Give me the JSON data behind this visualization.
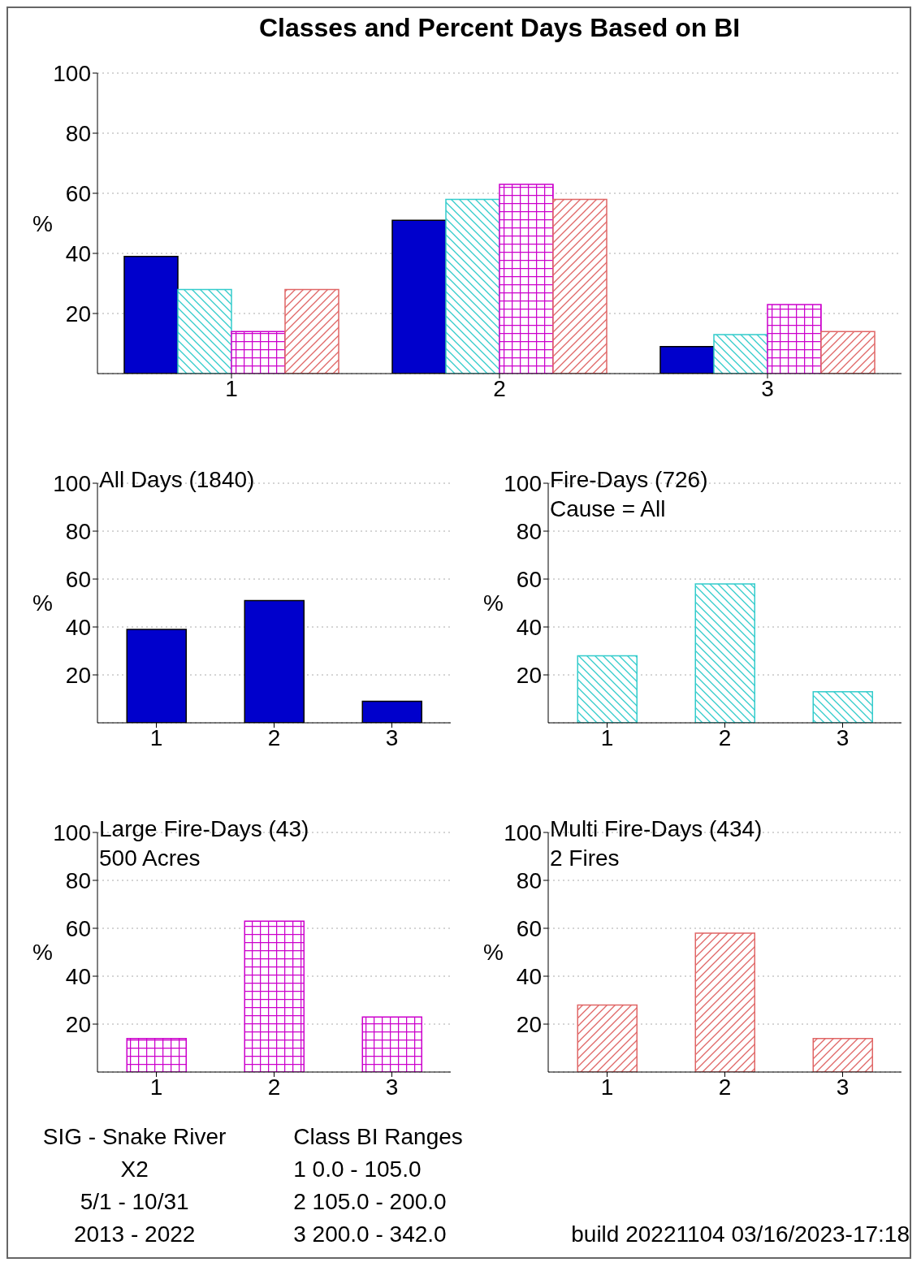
{
  "chart_data": [
    {
      "type": "bar",
      "title": "Classes and Percent Days Based on BI",
      "ylabel": "%",
      "categories": [
        "1",
        "2",
        "3"
      ],
      "series": [
        {
          "color": "#0000cc",
          "values": [
            39,
            51,
            9
          ]
        },
        {
          "color": "#33cccc",
          "values": [
            28,
            58,
            13
          ]
        },
        {
          "color": "#cc00cc",
          "values": [
            14,
            63,
            23
          ]
        },
        {
          "color": "#e06666",
          "values": [
            28,
            58,
            14
          ]
        }
      ],
      "ylim": [
        0,
        100
      ],
      "yticks": [
        20,
        40,
        60,
        80,
        100
      ],
      "grid": "y",
      "annotations": [
        "SIG - Snake River\nX2\n5/1 - 10/31\n2013 - 2022",
        "Class BI Ranges\n1   0.0 - 105.0\n2 105.0 - 200.0\n3 200.0 - 342.0",
        "build 20221104 03/16/2023-17:18"
      ]
    },
    {
      "type": "bar",
      "title": "All Days (1840)",
      "ylabel": "%",
      "categories": [
        "1",
        "2",
        "3"
      ],
      "series": [
        {
          "color": "#0000cc",
          "values": [
            39,
            51,
            9
          ]
        }
      ],
      "ylim": [
        0,
        100
      ],
      "yticks": [
        20,
        40,
        60,
        80,
        100
      ],
      "grid": "y"
    },
    {
      "type": "bar",
      "title": "Fire-Days (726)",
      "subtitle": "Cause = All",
      "ylabel": "%",
      "categories": [
        "1",
        "2",
        "3"
      ],
      "series": [
        {
          "color": "#33cccc",
          "values": [
            28,
            58,
            13
          ]
        }
      ],
      "ylim": [
        0,
        100
      ],
      "yticks": [
        20,
        40,
        60,
        80,
        100
      ],
      "grid": "y"
    },
    {
      "type": "bar",
      "title": "Large Fire-Days (43)",
      "subtitle": "500 Acres",
      "ylabel": "%",
      "categories": [
        "1",
        "2",
        "3"
      ],
      "series": [
        {
          "color": "#cc00cc",
          "values": [
            14,
            63,
            23
          ]
        }
      ],
      "ylim": [
        0,
        100
      ],
      "yticks": [
        20,
        40,
        60,
        80,
        100
      ],
      "grid": "y"
    },
    {
      "type": "bar",
      "title": "Multi Fire-Days (434)",
      "subtitle": "2 Fires",
      "ylabel": "%",
      "categories": [
        "1",
        "2",
        "3"
      ],
      "series": [
        {
          "color": "#e06666",
          "values": [
            28,
            58,
            14
          ]
        }
      ],
      "ylim": [
        0,
        100
      ],
      "yticks": [
        20,
        40,
        60,
        80,
        100
      ],
      "grid": "y"
    }
  ]
}
